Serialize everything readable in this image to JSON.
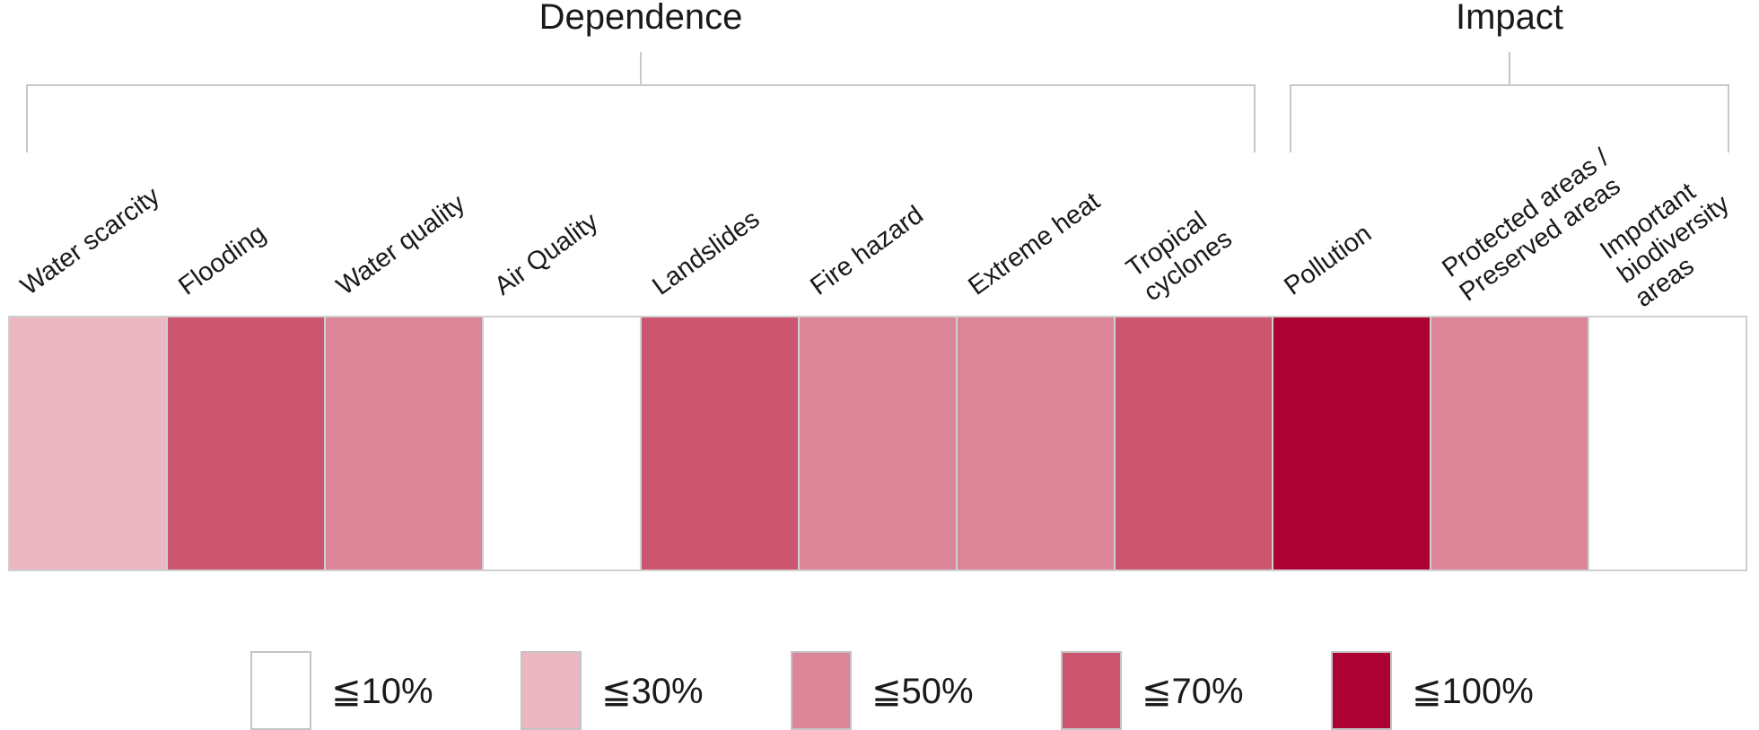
{
  "chart_data": {
    "type": "heatmap",
    "groups": [
      {
        "title": "Dependence",
        "categories": [
          "Water scarcity",
          "Flooding",
          "Water quality",
          "Air Quality",
          "Landslides",
          "Fire hazard",
          "Extreme heat",
          "Tropical cyclones"
        ]
      },
      {
        "title": "Impact",
        "categories": [
          "Pollution",
          "Protected areas / Preserved areas",
          "Important biodiversity areas"
        ]
      }
    ],
    "categories": [
      {
        "name": "Water scarcity",
        "label_lines": [
          "Water scarcity"
        ],
        "level": "≦30%"
      },
      {
        "name": "Flooding",
        "label_lines": [
          "Flooding"
        ],
        "level": "≦70%"
      },
      {
        "name": "Water quality",
        "label_lines": [
          "Water quality"
        ],
        "level": "≦50%"
      },
      {
        "name": "Air Quality",
        "label_lines": [
          "Air Quality"
        ],
        "level": "≦10%"
      },
      {
        "name": "Landslides",
        "label_lines": [
          "Landslides"
        ],
        "level": "≦70%"
      },
      {
        "name": "Fire hazard",
        "label_lines": [
          "Fire hazard"
        ],
        "level": "≦50%"
      },
      {
        "name": "Extreme heat",
        "label_lines": [
          "Extreme heat"
        ],
        "level": "≦50%"
      },
      {
        "name": "Tropical cyclones",
        "label_lines": [
          "Tropical",
          "cyclones"
        ],
        "level": "≦70%"
      },
      {
        "name": "Pollution",
        "label_lines": [
          "Pollution"
        ],
        "level": "≦100%"
      },
      {
        "name": "Protected areas / Preserved areas",
        "label_lines": [
          "Protected areas /",
          "Preserved areas"
        ],
        "level": "≦50%"
      },
      {
        "name": "Important biodiversity areas",
        "label_lines": [
          "Important",
          "biodiversity",
          "areas"
        ],
        "level": "≦10%"
      }
    ],
    "legend": [
      {
        "label": "≦10%",
        "color": "#ffffff"
      },
      {
        "label": "≦30%",
        "color": "#eab7c2"
      },
      {
        "label": "≦50%",
        "color": "#dc8498"
      },
      {
        "label": "≦70%",
        "color": "#cc5570"
      },
      {
        "label": "≦100%",
        "color": "#ad0033"
      }
    ],
    "legend_position": "bottom"
  }
}
